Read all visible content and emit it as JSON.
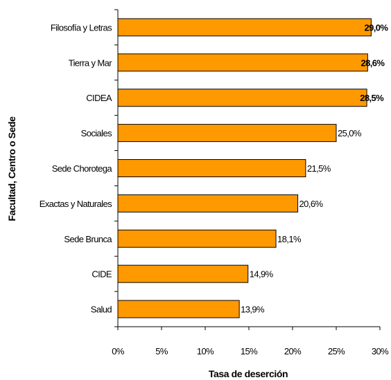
{
  "chart_data": {
    "type": "bar",
    "orientation": "horizontal",
    "categories": [
      "Filosofía y Letras",
      "Tierra y Mar",
      "CIDEA",
      "Sociales",
      "Sede Chorotega",
      "Exactas y Naturales",
      "Sede Brunca",
      "CIDE",
      "Salud"
    ],
    "values": [
      29.0,
      28.6,
      28.5,
      25.0,
      21.5,
      20.6,
      18.1,
      14.9,
      13.9
    ],
    "value_labels": [
      "29,0%",
      "28,6%",
      "28,5%",
      "25,0%",
      "21,5%",
      "20,6%",
      "18,1%",
      "14,9%",
      "13,9%"
    ],
    "xlim": [
      0,
      30
    ],
    "x_ticks": [
      0,
      5,
      10,
      15,
      20,
      25,
      30
    ],
    "x_tick_labels": [
      "0%",
      "5%",
      "10%",
      "15%",
      "20%",
      "25%",
      "30%"
    ],
    "xlabel": "Tasa de deserción",
    "ylabel": "Facultad, Centro o Sede",
    "grid": false,
    "legend": "none",
    "colors": {
      "bar_fill": "#FF9900",
      "bar_stroke": "#000000"
    }
  }
}
